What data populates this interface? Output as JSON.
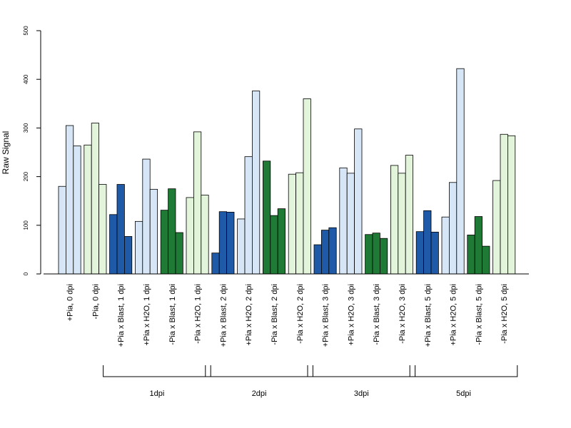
{
  "chart_data": {
    "type": "bar",
    "ylabel": "Raw Signal",
    "ylim": [
      0,
      500
    ],
    "yticks": [
      0,
      100,
      200,
      300,
      400,
      500
    ],
    "colors": {
      "pia_mock": "#d6e6f7",
      "noPia_mock": "#e2f5da",
      "pia_blast": "#1f5aa8",
      "noPia_blast": "#1e7a35"
    },
    "categories": [
      {
        "label": "+Pia, 0 dpi",
        "values": [
          180,
          305,
          263
        ],
        "color_key": "pia_mock"
      },
      {
        "label": "-Pia, 0 dpi",
        "values": [
          265,
          310,
          184
        ],
        "color_key": "noPia_mock"
      },
      {
        "label": "+Pia x Blast, 1 dpi",
        "values": [
          122,
          184,
          77
        ],
        "color_key": "pia_blast"
      },
      {
        "label": "+Pia x H2O, 1 dpi",
        "values": [
          108,
          236,
          174
        ],
        "color_key": "pia_mock"
      },
      {
        "label": "-Pia x Blast, 1 dpi",
        "values": [
          131,
          175,
          85
        ],
        "color_key": "noPia_blast"
      },
      {
        "label": "-Pia x H2O, 1 dpi",
        "values": [
          157,
          292,
          162
        ],
        "color_key": "noPia_mock"
      },
      {
        "label": "+Pia x Blast, 2 dpi",
        "values": [
          43,
          128,
          127
        ],
        "color_key": "pia_blast"
      },
      {
        "label": "+Pia x H2O, 2 dpi",
        "values": [
          113,
          241,
          376
        ],
        "color_key": "pia_mock"
      },
      {
        "label": "-Pia x Blast, 2 dpi",
        "values": [
          232,
          120,
          134
        ],
        "color_key": "noPia_blast"
      },
      {
        "label": "-Pia x H2O, 2 dpi",
        "values": [
          205,
          208,
          360
        ],
        "color_key": "noPia_mock"
      },
      {
        "label": "+Pia x Blast, 3 dpi",
        "values": [
          60,
          90,
          95
        ],
        "color_key": "pia_blast"
      },
      {
        "label": "+Pia x H2O, 3 dpi",
        "values": [
          218,
          207,
          298
        ],
        "color_key": "pia_mock"
      },
      {
        "label": "-Pia x Blast, 3 dpi",
        "values": [
          81,
          84,
          73
        ],
        "color_key": "noPia_blast"
      },
      {
        "label": "-Pia x H2O, 3 dpi",
        "values": [
          223,
          207,
          244
        ],
        "color_key": "noPia_mock"
      },
      {
        "label": "+Pia x Blast, 5 dpi",
        "values": [
          87,
          130,
          86
        ],
        "color_key": "pia_blast"
      },
      {
        "label": "+Pia x H2O, 5 dpi",
        "values": [
          117,
          188,
          422
        ],
        "color_key": "pia_mock"
      },
      {
        "label": "-Pia x Blast, 5 dpi",
        "values": [
          80,
          118,
          57
        ],
        "color_key": "noPia_blast"
      },
      {
        "label": "-Pia x H2O, 5 dpi",
        "values": [
          192,
          287,
          284
        ],
        "color_key": "noPia_mock"
      }
    ],
    "groups": [
      {
        "label": "1dpi",
        "first": 2,
        "last": 5
      },
      {
        "label": "2dpi",
        "first": 6,
        "last": 9
      },
      {
        "label": "3dpi",
        "first": 10,
        "last": 13
      },
      {
        "label": "5dpi",
        "first": 14,
        "last": 17
      }
    ]
  }
}
